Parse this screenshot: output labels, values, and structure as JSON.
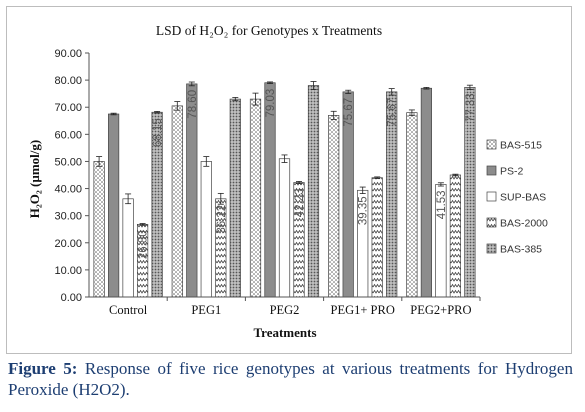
{
  "chart_data": {
    "type": "bar",
    "title": "LSD of H₂O₂ for Genotypes x Treatments",
    "xlabel": "Treatments",
    "ylabel": "H₂O₂ (µmol/g)",
    "ylim": [
      0,
      90
    ],
    "yticks": [
      "0.00",
      "10.00",
      "20.00",
      "30.00",
      "40.00",
      "50.00",
      "60.00",
      "70.00",
      "80.00",
      "90.00"
    ],
    "grid": false,
    "legend_position": "right",
    "categories": [
      "Control",
      "PEG1",
      "PEG2",
      "PEG1+ PRO",
      "PEG2+PRO"
    ],
    "series": [
      {
        "name": "BAS-515",
        "pattern": "dots",
        "values": [
          50.0,
          70.5,
          73.0,
          67.0,
          68.0
        ],
        "errors": [
          1.8,
          1.6,
          2.2,
          1.5,
          1.0
        ],
        "labels": [
          "",
          "",
          "",
          "",
          ""
        ]
      },
      {
        "name": "PS-2",
        "pattern": "solid-gray",
        "values": [
          67.5,
          78.6,
          79.03,
          75.67,
          77.0
        ],
        "errors": [
          0.3,
          0.7,
          0.3,
          0.6,
          0.3
        ],
        "labels": [
          "",
          "78.60",
          "79.03",
          "75.67",
          ""
        ]
      },
      {
        "name": "SUP-BAS",
        "pattern": "white",
        "values": [
          36.22,
          50.0,
          51.0,
          39.35,
          41.53
        ],
        "errors": [
          1.8,
          1.8,
          1.4,
          1.2,
          0.6
        ],
        "labels": [
          "",
          "",
          "",
          "39.35",
          "41.53"
        ]
      },
      {
        "name": "BAS-2000",
        "pattern": "zigzag",
        "values": [
          26.8,
          36.22,
          42.23,
          44.0,
          45.0
        ],
        "errors": [
          0.3,
          2.0,
          0.4,
          0.3,
          0.3
        ],
        "labels": [
          "26.80",
          "36.22",
          "42.23",
          "",
          ""
        ]
      },
      {
        "name": "BAS-385",
        "pattern": "dark-dots",
        "values": [
          68.15,
          73.0,
          78.0,
          75.67,
          77.33
        ],
        "errors": [
          0.3,
          0.6,
          1.5,
          1.2,
          0.8
        ],
        "labels": [
          "68.15",
          "",
          "",
          "75.67",
          "77.33"
        ]
      }
    ]
  },
  "caption": {
    "label": "Figure 5:",
    "text": " Response of five rice genotypes at various treatments for Hydrogen Peroxide (H2O2)."
  }
}
